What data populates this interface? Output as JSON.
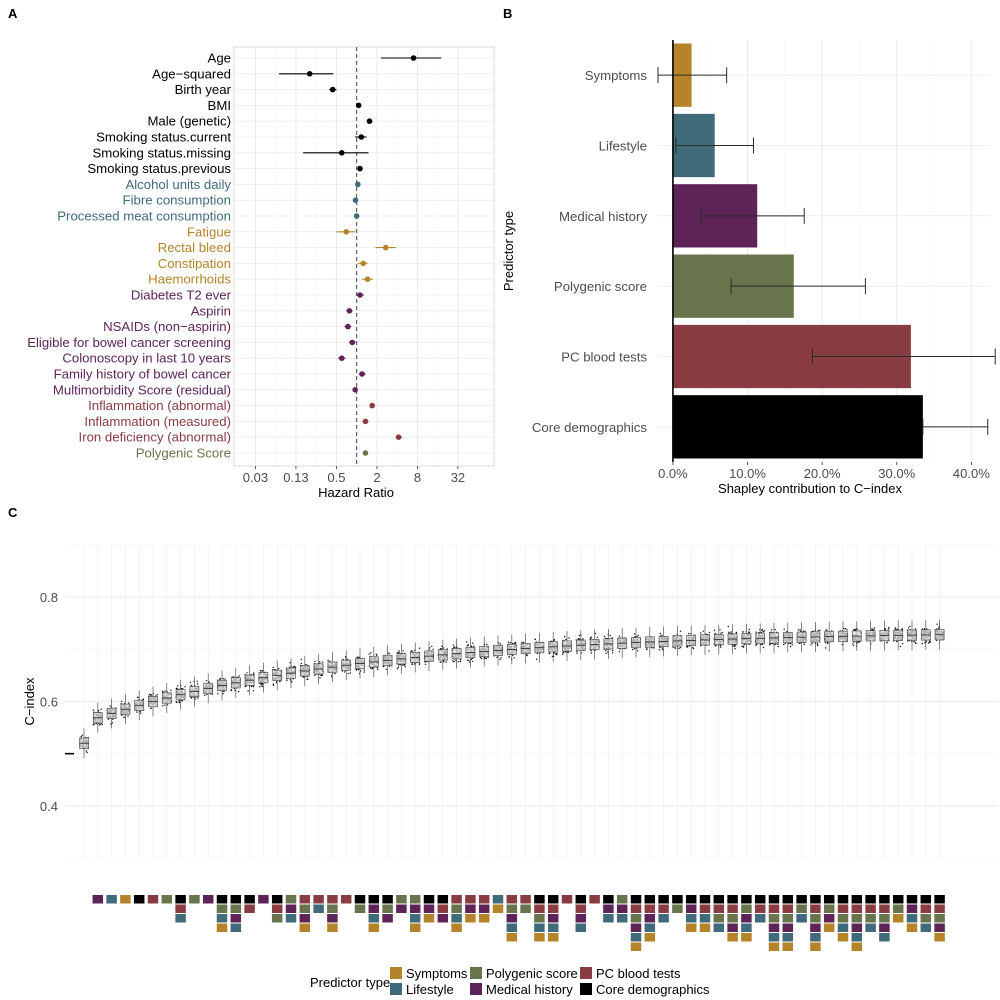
{
  "panel_labels": {
    "a": "A",
    "b": "B",
    "c": "C"
  },
  "colors": {
    "core": "#000000",
    "symptoms": "#b5842a",
    "lifestyle": "#3f6b7a",
    "medical": "#5e2457",
    "polygenic": "#68744c",
    "pc": "#8a3c43"
  },
  "chart_data": [
    {
      "panel": "A",
      "type": "scatter",
      "subtype": "forest-plot",
      "xlabel": "Hazard Ratio",
      "x_scale": "log2",
      "x_ticks": [
        "0.03",
        "0.13",
        "0.5",
        "2",
        "8",
        "32"
      ],
      "x_tick_values": [
        0.03125,
        0.125,
        0.5,
        2,
        8,
        32
      ],
      "xlim": [
        0.015,
        110
      ],
      "reference_line": 1,
      "rows": [
        {
          "label": "Age",
          "group": "core",
          "hr": 7.0,
          "lo": 2.3,
          "hi": 18.0
        },
        {
          "label": "Age−squared",
          "group": "core",
          "hr": 0.2,
          "lo": 0.07,
          "hi": 0.45
        },
        {
          "label": "Birth year",
          "group": "core",
          "hr": 0.44,
          "lo": 0.39,
          "hi": 0.5
        },
        {
          "label": "BMI",
          "group": "core",
          "hr": 1.07,
          "lo": 1.02,
          "hi": 1.12
        },
        {
          "label": "Male (genetic)",
          "group": "core",
          "hr": 1.55,
          "lo": 1.42,
          "hi": 1.7
        },
        {
          "label": "Smoking status.current",
          "group": "core",
          "hr": 1.17,
          "lo": 0.95,
          "hi": 1.4
        },
        {
          "label": "Smoking status.missing",
          "group": "core",
          "hr": 0.6,
          "lo": 0.16,
          "hi": 1.5
        },
        {
          "label": "Smoking status.previous",
          "group": "core",
          "hr": 1.12,
          "lo": 1.05,
          "hi": 1.19
        },
        {
          "label": "Alcohol units daily",
          "group": "lifestyle",
          "hr": 1.04,
          "lo": 1.0,
          "hi": 1.08
        },
        {
          "label": "Fibre consumption",
          "group": "lifestyle",
          "hr": 0.96,
          "lo": 0.92,
          "hi": 1.0
        },
        {
          "label": "Processed meat consumption",
          "group": "lifestyle",
          "hr": 1.0,
          "lo": 0.96,
          "hi": 1.04
        },
        {
          "label": "Fatigue",
          "group": "symptoms",
          "hr": 0.7,
          "lo": 0.5,
          "hi": 0.95
        },
        {
          "label": "Rectal bleed",
          "group": "symptoms",
          "hr": 2.7,
          "lo": 1.9,
          "hi": 3.8
        },
        {
          "label": "Constipation",
          "group": "symptoms",
          "hr": 1.25,
          "lo": 1.05,
          "hi": 1.45
        },
        {
          "label": "Haemorrhoids",
          "group": "symptoms",
          "hr": 1.45,
          "lo": 1.2,
          "hi": 1.75
        },
        {
          "label": "Diabetes T2 ever",
          "group": "medical",
          "hr": 1.12,
          "lo": 0.98,
          "hi": 1.28
        },
        {
          "label": "Aspirin",
          "group": "medical",
          "hr": 0.78,
          "lo": 0.7,
          "hi": 0.87
        },
        {
          "label": "NSAIDs (non−aspirin)",
          "group": "medical",
          "hr": 0.74,
          "lo": 0.66,
          "hi": 0.83
        },
        {
          "label": "Eligible for bowel cancer screening",
          "group": "medical",
          "hr": 0.86,
          "lo": 0.77,
          "hi": 0.96
        },
        {
          "label": "Colonoscopy in last 10 years",
          "group": "medical",
          "hr": 0.6,
          "lo": 0.53,
          "hi": 0.68
        },
        {
          "label": "Family history of bowel cancer",
          "group": "medical",
          "hr": 1.2,
          "lo": 1.07,
          "hi": 1.35
        },
        {
          "label": "Multimorbidity Score (residual)",
          "group": "medical",
          "hr": 0.95,
          "lo": 0.9,
          "hi": 1.0
        },
        {
          "label": "Inflammation (abnormal)",
          "group": "pc",
          "hr": 1.7,
          "lo": 1.55,
          "hi": 1.85
        },
        {
          "label": "Inflammation (measured)",
          "group": "pc",
          "hr": 1.35,
          "lo": 1.22,
          "hi": 1.5
        },
        {
          "label": "Iron deficiency (abnormal)",
          "group": "pc",
          "hr": 4.2,
          "lo": 3.8,
          "hi": 4.7
        },
        {
          "label": "Polygenic Score",
          "group": "polygenic",
          "hr": 1.35,
          "lo": 1.3,
          "hi": 1.4
        }
      ]
    },
    {
      "panel": "B",
      "type": "bar",
      "orientation": "horizontal",
      "xlabel": "Shapley contribution to C−index",
      "ylabel": "Predictor type",
      "xlim": [
        -0.02,
        0.425
      ],
      "x_ticks": [
        "0.0%",
        "10.0%",
        "20.0%",
        "30.0%",
        "40.0%"
      ],
      "x_tick_values": [
        0,
        0.1,
        0.2,
        0.3,
        0.4
      ],
      "bars": [
        {
          "label": "Symptoms",
          "group": "symptoms",
          "value": 0.025,
          "lo": -0.02,
          "hi": 0.072
        },
        {
          "label": "Lifestyle",
          "group": "lifestyle",
          "value": 0.056,
          "lo": 0.004,
          "hi": 0.108
        },
        {
          "label": "Medical history",
          "group": "medical",
          "value": 0.113,
          "lo": 0.038,
          "hi": 0.176
        },
        {
          "label": "Polygenic score",
          "group": "polygenic",
          "value": 0.162,
          "lo": 0.078,
          "hi": 0.258
        },
        {
          "label": "PC blood tests",
          "group": "pc",
          "value": 0.319,
          "lo": 0.187,
          "hi": 0.432
        },
        {
          "label": "Core demographics",
          "group": "core",
          "value": 0.335,
          "lo": 0.335,
          "hi": 0.422
        }
      ]
    },
    {
      "panel": "C",
      "type": "scatter",
      "subtype": "box-jitter",
      "ylabel": "C−index",
      "ylim": [
        0.3,
        0.9
      ],
      "y_ticks": [
        "0.4",
        "0.6",
        "0.8"
      ],
      "y_tick_values": [
        0.4,
        0.6,
        0.8
      ],
      "baseline_value": 0.5,
      "n_models": 63,
      "median_start": 0.52,
      "median_end": 0.728,
      "spread_sd": 0.011,
      "row_order": [
        "core",
        "pc",
        "polygenic",
        "medical",
        "lifestyle",
        "symptoms"
      ]
    }
  ],
  "legend": {
    "title": "Predictor type",
    "items": [
      {
        "label": "Symptoms",
        "group": "symptoms"
      },
      {
        "label": "Lifestyle",
        "group": "lifestyle"
      },
      {
        "label": "Polygenic score",
        "group": "polygenic"
      },
      {
        "label": "Medical history",
        "group": "medical"
      },
      {
        "label": "PC blood tests",
        "group": "pc"
      },
      {
        "label": "Core demographics",
        "group": "core"
      }
    ]
  }
}
